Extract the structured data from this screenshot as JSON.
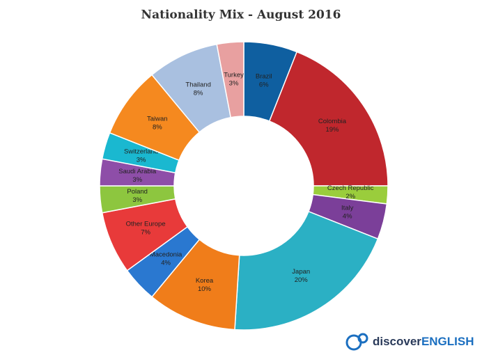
{
  "chart_data": {
    "type": "donut",
    "title": "Nationality Mix - August 2016",
    "categories": [
      "Brazil",
      "Colombia",
      "Czech Republic",
      "Italy",
      "Japan",
      "Korea",
      "Macedonia",
      "Other Europe",
      "Poland",
      "Saudi Arabia",
      "Switzerland",
      "Taiwan",
      "Thailand",
      "Turkey"
    ],
    "values": [
      6,
      19,
      2,
      4,
      20,
      10,
      4,
      7,
      3,
      3,
      3,
      8,
      8,
      3
    ],
    "value_labels": [
      "6%",
      "19%",
      "2%",
      "4%",
      "20%",
      "10%",
      "4%",
      "7%",
      "3%",
      "3%",
      "3%",
      "8%",
      "8%",
      "3%"
    ],
    "colors": [
      "#0f5fa0",
      "#c0272d",
      "#9acd3c",
      "#7b3f99",
      "#2bb0c4",
      "#f07d1a",
      "#2a78d0",
      "#e83a3a",
      "#8dc63f",
      "#8e4ea8",
      "#1ab8d0",
      "#f5891f",
      "#a9c0e0",
      "#e8a0a0"
    ]
  },
  "logo": {
    "prefix": "discover",
    "suffix": "ENGLISH"
  }
}
